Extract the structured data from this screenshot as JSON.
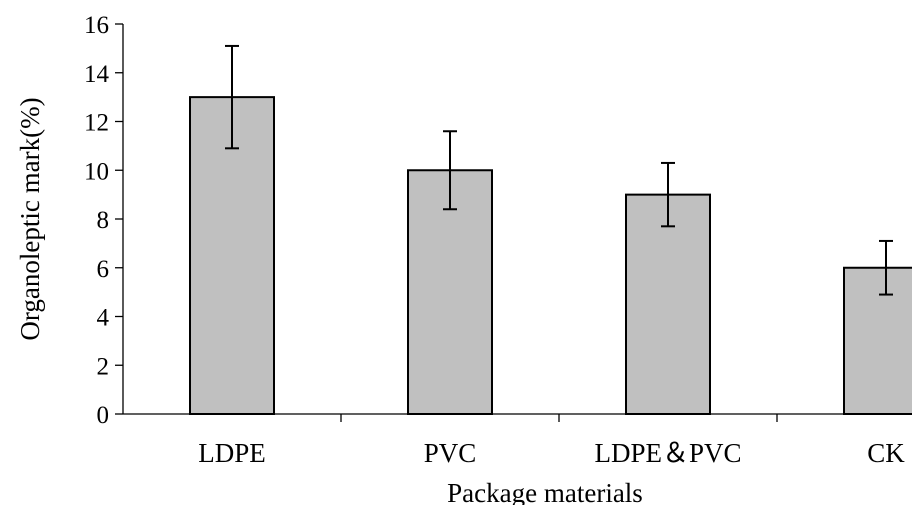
{
  "chart_data": {
    "type": "bar",
    "categories": [
      "LDPE",
      "PVC",
      "LDPE＆PVC",
      "CK"
    ],
    "values": [
      13,
      10,
      9,
      6
    ],
    "errors": [
      2.1,
      1.6,
      1.3,
      1.1
    ],
    "xlabel": "Package materials",
    "ylabel": "Organoleptic mark(%)",
    "ylim": [
      0,
      16
    ],
    "yticks": [
      0,
      2,
      4,
      6,
      8,
      10,
      12,
      14,
      16
    ],
    "grid": false,
    "legend": "none",
    "bar_color": "#c0c0c0"
  }
}
